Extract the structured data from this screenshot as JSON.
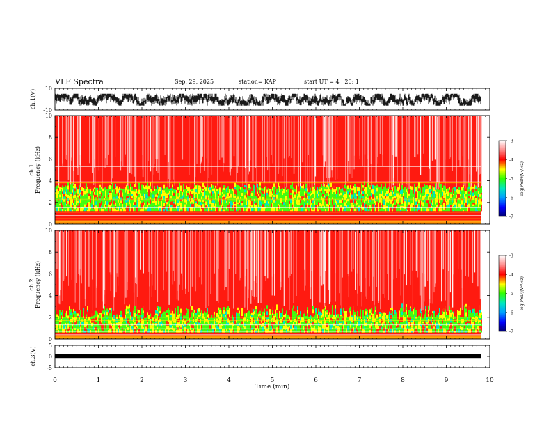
{
  "header": {
    "title": "VLF Spectra",
    "date": "Sep. 29, 2025",
    "station": "station= KAP",
    "start_ut": "start  UT =   4 : 20: 1"
  },
  "chart_data": [
    {
      "type": "line",
      "panel": "ch1-waveform",
      "ylabel": "ch.1(V)",
      "ylim": [
        -10,
        10
      ],
      "y_ticks": [
        "10",
        "-10"
      ],
      "xlim": [
        0,
        10
      ],
      "data_end_min": 9.8,
      "description": "noisy waveform roughly between -5 and 4 V"
    },
    {
      "type": "heatmap",
      "panel": "ch1-spectrogram",
      "ylabel_channel": "ch.1",
      "ylabel": "Frequency (kHz)",
      "ylim": [
        0,
        10
      ],
      "y_ticks": [
        "0",
        "2",
        "4",
        "6",
        "8",
        "10"
      ],
      "xlim": [
        0,
        10
      ],
      "data_end_min": 9.8,
      "colorbar": {
        "label": "log(PSD)(V²/Hz)",
        "range": [
          -7,
          -3
        ],
        "ticks": [
          "-3",
          "-4",
          "-5",
          "-6",
          "-7"
        ]
      }
    },
    {
      "type": "heatmap",
      "panel": "ch2-spectrogram",
      "ylabel_channel": "ch.2",
      "ylabel": "Frequency (kHz)",
      "ylim": [
        0,
        10
      ],
      "y_ticks": [
        "0",
        "2",
        "4",
        "6",
        "8",
        "10"
      ],
      "xlim": [
        0,
        10
      ],
      "data_end_min": 9.8,
      "colorbar": {
        "label": "log(PSD)(V²/Hz)",
        "range": [
          -7,
          -3
        ],
        "ticks": [
          "-3",
          "-4",
          "-5",
          "-6",
          "-7"
        ]
      }
    },
    {
      "type": "line",
      "panel": "ch3-signal",
      "ylabel": "ch.3(V)",
      "ylim": [
        -5,
        5
      ],
      "y_ticks": [
        "5",
        "0",
        "-5"
      ],
      "xlim": [
        0,
        10
      ],
      "data_end_min": 9.8,
      "level_v": 0,
      "description": "thick flat trace near 0 V"
    }
  ],
  "x_axis": {
    "label": "Time (min)",
    "ticks": [
      "0",
      "1",
      "2",
      "3",
      "4",
      "5",
      "6",
      "7",
      "8",
      "9",
      "10"
    ]
  }
}
